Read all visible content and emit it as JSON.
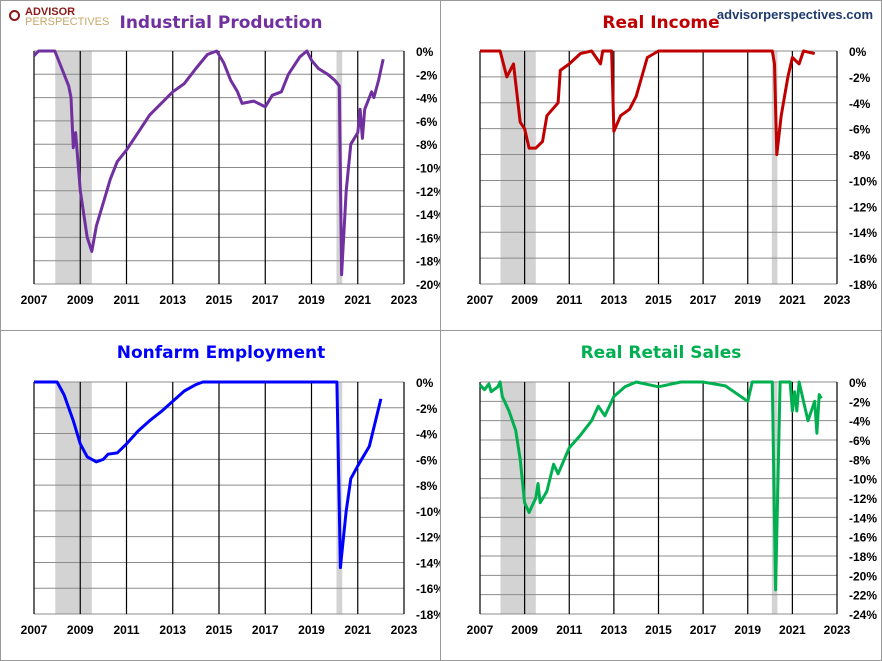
{
  "brand": {
    "logo_line1": "ADVISOR",
    "logo_line2": "PERSPECTIVES",
    "site": "advisorperspectives.com"
  },
  "chart_data": [
    {
      "type": "line",
      "title": "Industrial Production",
      "color": "#7030a0",
      "xlim": [
        2007,
        2023
      ],
      "ylim": [
        -20,
        0
      ],
      "ystep": 2,
      "xticks": [
        "2007",
        "2009",
        "2011",
        "2013",
        "2015",
        "2017",
        "2019",
        "2021",
        "2023"
      ],
      "yticks": [
        "0%",
        "-2%",
        "-4%",
        "-6%",
        "-8%",
        "-10%",
        "-12%",
        "-14%",
        "-16%",
        "-18%",
        "-20%"
      ],
      "recessions": [
        [
          2007.92,
          2009.5
        ],
        [
          2020.08,
          2020.33
        ]
      ],
      "points": [
        [
          2007,
          -0.4
        ],
        [
          2007.2,
          0
        ],
        [
          2007.5,
          0
        ],
        [
          2007.9,
          0
        ],
        [
          2008.2,
          -1.5
        ],
        [
          2008.5,
          -3
        ],
        [
          2008.6,
          -4
        ],
        [
          2008.7,
          -8.3
        ],
        [
          2008.8,
          -7
        ],
        [
          2009,
          -12
        ],
        [
          2009.3,
          -16
        ],
        [
          2009.5,
          -17.2
        ],
        [
          2009.7,
          -15
        ],
        [
          2010,
          -13
        ],
        [
          2010.3,
          -11
        ],
        [
          2010.6,
          -9.5
        ],
        [
          2011,
          -8.5
        ],
        [
          2011.5,
          -7
        ],
        [
          2012,
          -5.5
        ],
        [
          2012.5,
          -4.5
        ],
        [
          2013,
          -3.5
        ],
        [
          2013.5,
          -2.8
        ],
        [
          2014,
          -1.5
        ],
        [
          2014.5,
          -0.3
        ],
        [
          2014.9,
          0
        ],
        [
          2015.2,
          -1
        ],
        [
          2015.5,
          -2.5
        ],
        [
          2015.8,
          -3.5
        ],
        [
          2016,
          -4.5
        ],
        [
          2016.5,
          -4.3
        ],
        [
          2017,
          -4.8
        ],
        [
          2017.3,
          -3.8
        ],
        [
          2017.7,
          -3.5
        ],
        [
          2018,
          -2
        ],
        [
          2018.5,
          -0.5
        ],
        [
          2018.8,
          0
        ],
        [
          2019,
          -0.8
        ],
        [
          2019.3,
          -1.5
        ],
        [
          2019.7,
          -2
        ],
        [
          2020,
          -2.5
        ],
        [
          2020.2,
          -3
        ],
        [
          2020.3,
          -19.2
        ],
        [
          2020.5,
          -12
        ],
        [
          2020.7,
          -8
        ],
        [
          2021,
          -7
        ],
        [
          2021.1,
          -5
        ],
        [
          2021.2,
          -7.5
        ],
        [
          2021.3,
          -5
        ],
        [
          2021.6,
          -3.5
        ],
        [
          2021.7,
          -4
        ],
        [
          2021.9,
          -2.5
        ],
        [
          2022.1,
          -0.7
        ]
      ]
    },
    {
      "type": "line",
      "title": "Real Income",
      "color": "#c00000",
      "xlim": [
        2007,
        2023
      ],
      "ylim": [
        -18,
        0
      ],
      "ystep": 2,
      "xticks": [
        "2007",
        "2009",
        "2011",
        "2013",
        "2015",
        "2017",
        "2019",
        "2021",
        "2023"
      ],
      "yticks": [
        "0%",
        "-2%",
        "-4%",
        "-6%",
        "-8%",
        "-10%",
        "-12%",
        "-14%",
        "-16%",
        "-18%"
      ],
      "recessions": [
        [
          2007.92,
          2009.5
        ],
        [
          2020.08,
          2020.33
        ]
      ],
      "points": [
        [
          2007,
          0
        ],
        [
          2007.9,
          0
        ],
        [
          2008.2,
          -2
        ],
        [
          2008.5,
          -1
        ],
        [
          2008.8,
          -5.5
        ],
        [
          2009,
          -6
        ],
        [
          2009.2,
          -7.5
        ],
        [
          2009.5,
          -7.5
        ],
        [
          2009.8,
          -7
        ],
        [
          2010,
          -5
        ],
        [
          2010.5,
          -4
        ],
        [
          2010.6,
          -1.5
        ],
        [
          2011,
          -1
        ],
        [
          2011.5,
          -0.2
        ],
        [
          2012,
          0
        ],
        [
          2012.4,
          -1
        ],
        [
          2012.5,
          0
        ],
        [
          2012.9,
          0
        ],
        [
          2013,
          -6.2
        ],
        [
          2013.3,
          -5
        ],
        [
          2013.7,
          -4.5
        ],
        [
          2014,
          -3.5
        ],
        [
          2014.5,
          -0.5
        ],
        [
          2015,
          0
        ],
        [
          2020.1,
          0
        ],
        [
          2020.2,
          -1
        ],
        [
          2020.3,
          -8
        ],
        [
          2020.5,
          -5
        ],
        [
          2020.8,
          -2
        ],
        [
          2021,
          -0.5
        ],
        [
          2021.3,
          -1
        ],
        [
          2021.5,
          0
        ],
        [
          2022,
          -0.2
        ]
      ]
    },
    {
      "type": "line",
      "title": "Nonfarm Employment",
      "color": "#0000ff",
      "xlim": [
        2007,
        2023
      ],
      "ylim": [
        -18,
        0
      ],
      "ystep": 2,
      "xticks": [
        "2007",
        "2009",
        "2011",
        "2013",
        "2015",
        "2017",
        "2019",
        "2021",
        "2023"
      ],
      "yticks": [
        "0%",
        "-2%",
        "-4%",
        "-6%",
        "-8%",
        "-10%",
        "-12%",
        "-14%",
        "-16%",
        "-18%"
      ],
      "recessions": [
        [
          2007.92,
          2009.5
        ],
        [
          2020.08,
          2020.33
        ]
      ],
      "points": [
        [
          2007,
          0
        ],
        [
          2008,
          0
        ],
        [
          2008.3,
          -1
        ],
        [
          2008.7,
          -3
        ],
        [
          2009,
          -4.8
        ],
        [
          2009.3,
          -5.8
        ],
        [
          2009.7,
          -6.2
        ],
        [
          2010,
          -6
        ],
        [
          2010.2,
          -5.6
        ],
        [
          2010.6,
          -5.5
        ],
        [
          2011,
          -4.8
        ],
        [
          2011.5,
          -3.8
        ],
        [
          2012,
          -3
        ],
        [
          2012.5,
          -2.3
        ],
        [
          2013,
          -1.5
        ],
        [
          2013.5,
          -0.7
        ],
        [
          2014,
          -0.2
        ],
        [
          2014.3,
          0
        ],
        [
          2020.1,
          0
        ],
        [
          2020.25,
          -14.4
        ],
        [
          2020.5,
          -10
        ],
        [
          2020.7,
          -7.5
        ],
        [
          2021,
          -6.5
        ],
        [
          2021.5,
          -5
        ],
        [
          2022,
          -1.3
        ]
      ]
    },
    {
      "type": "line",
      "title": "Real Retail Sales",
      "color": "#00b050",
      "xlim": [
        2007,
        2023
      ],
      "ylim": [
        -24,
        0
      ],
      "ystep": 2,
      "xticks": [
        "2007",
        "2009",
        "2011",
        "2013",
        "2015",
        "2017",
        "2019",
        "2021",
        "2023"
      ],
      "yticks": [
        "0%",
        "-2%",
        "-4%",
        "-6%",
        "-8%",
        "-10%",
        "-12%",
        "-14%",
        "-16%",
        "-18%",
        "-20%",
        "-22%",
        "-24%"
      ],
      "recessions": [
        [
          2007.92,
          2009.5
        ],
        [
          2020.08,
          2020.33
        ]
      ],
      "points": [
        [
          2007,
          -0.3
        ],
        [
          2007.2,
          -0.8
        ],
        [
          2007.4,
          -0.2
        ],
        [
          2007.5,
          -1
        ],
        [
          2007.8,
          -0.5
        ],
        [
          2007.9,
          0
        ],
        [
          2008,
          -1.5
        ],
        [
          2008.3,
          -3
        ],
        [
          2008.6,
          -5
        ],
        [
          2008.8,
          -8
        ],
        [
          2009,
          -12.5
        ],
        [
          2009.2,
          -13.5
        ],
        [
          2009.5,
          -12
        ],
        [
          2009.6,
          -10.5
        ],
        [
          2009.7,
          -12.5
        ],
        [
          2010,
          -11.3
        ],
        [
          2010.3,
          -8.5
        ],
        [
          2010.5,
          -9.5
        ],
        [
          2011,
          -6.8
        ],
        [
          2011.5,
          -5.5
        ],
        [
          2012,
          -4
        ],
        [
          2012.3,
          -2.5
        ],
        [
          2012.6,
          -3.5
        ],
        [
          2013,
          -1.5
        ],
        [
          2013.5,
          -0.5
        ],
        [
          2014,
          0
        ],
        [
          2015,
          -0.5
        ],
        [
          2016,
          0
        ],
        [
          2017,
          0
        ],
        [
          2018,
          -0.4
        ],
        [
          2019,
          -2
        ],
        [
          2019.2,
          0
        ],
        [
          2020.1,
          0
        ],
        [
          2020.25,
          -21.5
        ],
        [
          2020.45,
          0
        ],
        [
          2020.9,
          0
        ],
        [
          2021,
          -3
        ],
        [
          2021.1,
          -1
        ],
        [
          2021.2,
          -3
        ],
        [
          2021.3,
          0
        ],
        [
          2021.5,
          -2
        ],
        [
          2021.7,
          -4
        ],
        [
          2022,
          -2
        ],
        [
          2022.1,
          -5.3
        ],
        [
          2022.2,
          -1.3
        ],
        [
          2022.3,
          -1.7
        ]
      ]
    }
  ]
}
